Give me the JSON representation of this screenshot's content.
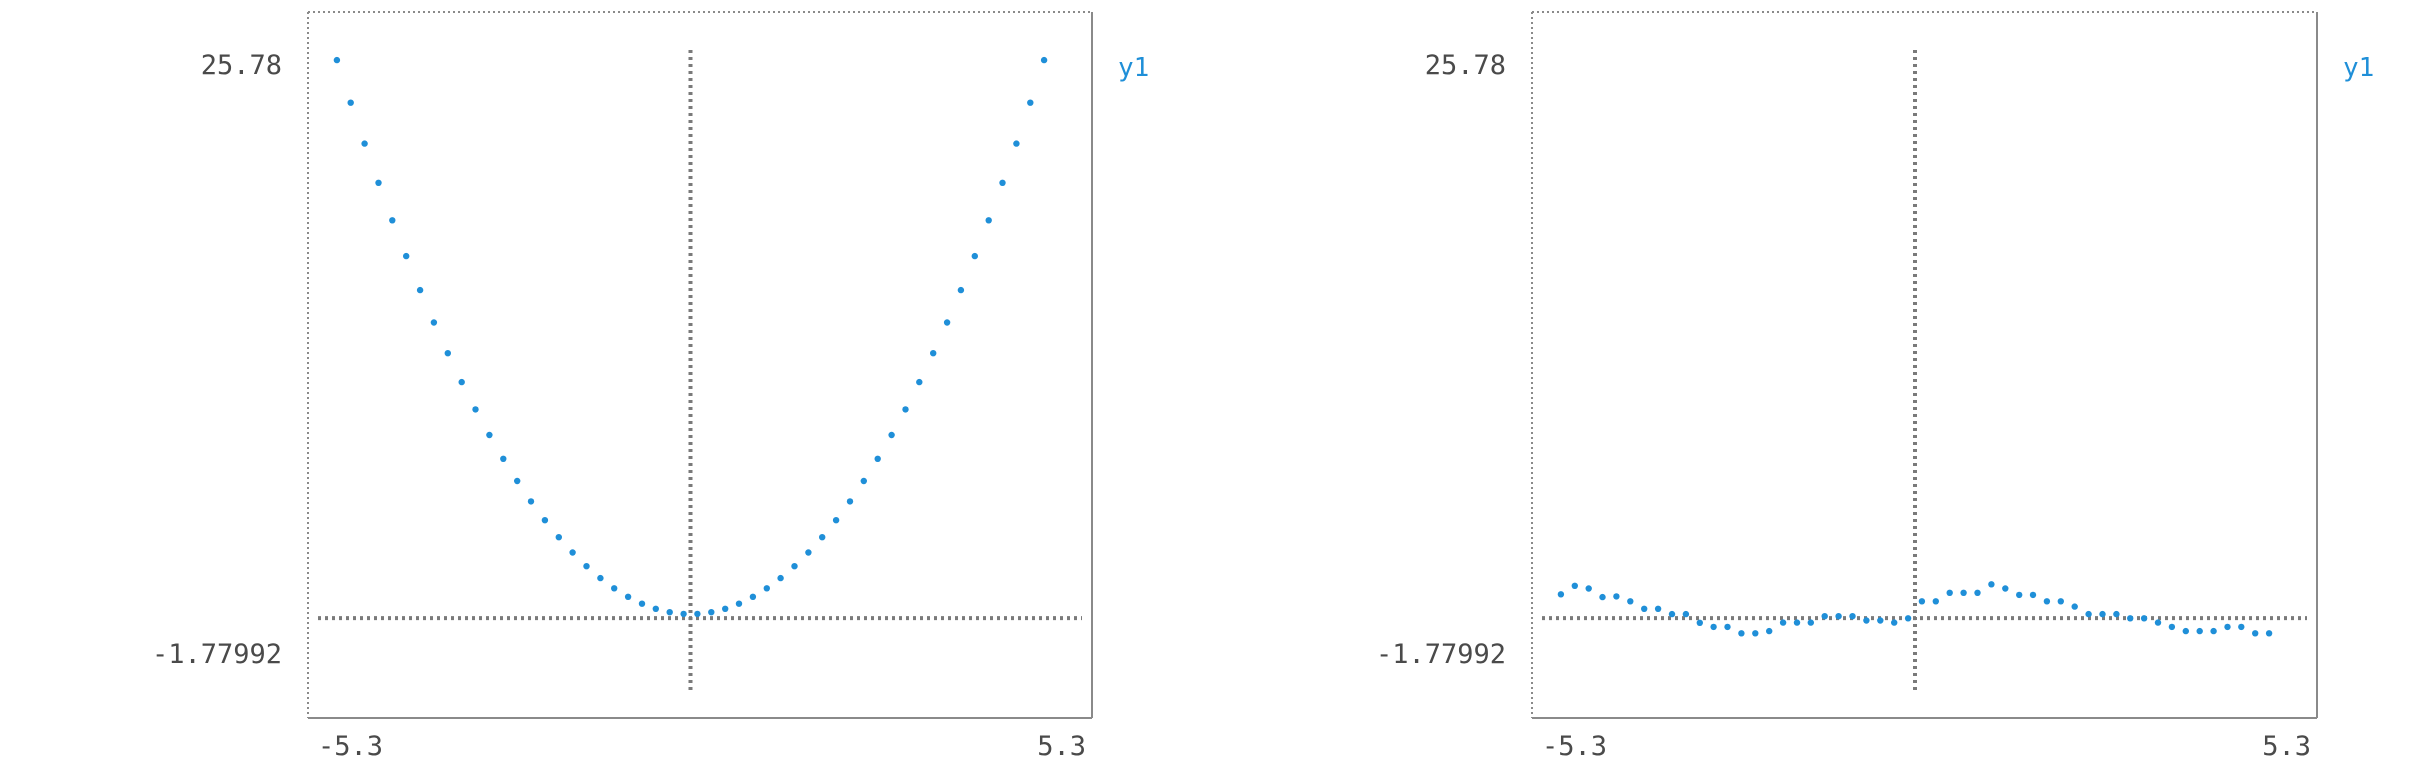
{
  "colors": {
    "series": "#1f8fd8",
    "frame": "#8a8a8a",
    "axis": "#7a7a7a",
    "text": "#4a4a4a"
  },
  "chart_data": [
    {
      "type": "scatter",
      "title": "",
      "xlabel": "",
      "ylabel": "",
      "xlim": [
        -5.3,
        5.3
      ],
      "ylim": [
        -1.77992,
        25.78
      ],
      "x_tick_labels": [
        "-5.3",
        "5.3"
      ],
      "y_tick_labels": [
        "25.78",
        "-1.77992"
      ],
      "legend": {
        "placement": "right-top",
        "entries": [
          "y1"
        ]
      },
      "grid": false,
      "series": [
        {
          "name": "y1",
          "x": [
            -5.1,
            -4.9,
            -4.7,
            -4.5,
            -4.3,
            -4.1,
            -3.9,
            -3.7,
            -3.5,
            -3.3,
            -3.1,
            -2.9,
            -2.7,
            -2.5,
            -2.3,
            -2.1,
            -1.9,
            -1.7,
            -1.5,
            -1.3,
            -1.1,
            -0.9,
            -0.7,
            -0.5,
            -0.3,
            -0.1,
            0.1,
            0.3,
            0.5,
            0.7,
            0.9,
            1.1,
            1.3,
            1.5,
            1.7,
            1.9,
            2.1,
            2.3,
            2.5,
            2.7,
            2.9,
            3.1,
            3.3,
            3.5,
            3.7,
            3.9,
            4.1,
            4.3,
            4.5,
            4.7,
            4.9,
            5.1
          ],
          "y": [
            26.01,
            24.01,
            22.09,
            20.25,
            18.49,
            16.81,
            15.21,
            13.69,
            12.25,
            10.89,
            9.61,
            8.41,
            7.29,
            6.25,
            5.29,
            4.41,
            3.61,
            2.89,
            2.25,
            1.69,
            1.21,
            0.81,
            0.49,
            0.25,
            0.09,
            0.01,
            0.01,
            0.09,
            0.25,
            0.49,
            0.81,
            1.21,
            1.69,
            2.25,
            2.89,
            3.61,
            4.41,
            5.29,
            6.25,
            7.29,
            8.41,
            9.61,
            10.89,
            12.25,
            13.69,
            15.21,
            16.81,
            18.49,
            20.25,
            22.09,
            24.01,
            26.01
          ]
        }
      ]
    },
    {
      "type": "scatter",
      "title": "",
      "xlabel": "",
      "ylabel": "",
      "xlim": [
        -5.3,
        5.3
      ],
      "ylim": [
        -1.77992,
        25.78
      ],
      "x_tick_labels": [
        "-5.3",
        "5.3"
      ],
      "y_tick_labels": [
        "25.78",
        "-1.77992"
      ],
      "legend": {
        "placement": "right-top",
        "entries": [
          "y1"
        ]
      },
      "grid": false,
      "series": [
        {
          "name": "y1",
          "x": [
            -5.1,
            -4.9,
            -4.7,
            -4.5,
            -4.3,
            -4.1,
            -3.9,
            -3.7,
            -3.5,
            -3.3,
            -3.1,
            -2.9,
            -2.7,
            -2.5,
            -2.3,
            -2.1,
            -1.9,
            -1.7,
            -1.5,
            -1.3,
            -1.1,
            -0.9,
            -0.7,
            -0.5,
            -0.3,
            -0.1,
            0.1,
            0.3,
            0.5,
            0.7,
            0.9,
            1.1,
            1.3,
            1.5,
            1.7,
            1.9,
            2.1,
            2.3,
            2.5,
            2.7,
            2.9,
            3.1,
            3.3,
            3.5,
            3.7,
            3.9,
            4.1,
            4.3,
            4.5,
            4.7,
            4.9,
            5.1
          ],
          "y": [
            0.93,
            1.33,
            1.2,
            0.8,
            0.83,
            0.6,
            0.25,
            0.25,
            0.0,
            0.0,
            -0.41,
            -0.6,
            -0.6,
            -0.9,
            -0.9,
            -0.8,
            -0.4,
            -0.4,
            -0.4,
            -0.1,
            -0.1,
            -0.1,
            -0.3,
            -0.3,
            -0.4,
            -0.2,
            0.6,
            0.6,
            1.0,
            1.0,
            1.0,
            1.4,
            1.2,
            0.9,
            0.9,
            0.6,
            0.6,
            0.35,
            0.0,
            0.0,
            0.0,
            -0.2,
            -0.2,
            -0.4,
            -0.6,
            -0.8,
            -0.8,
            -0.8,
            -0.6,
            -0.6,
            -0.9,
            -0.9
          ]
        }
      ]
    }
  ]
}
